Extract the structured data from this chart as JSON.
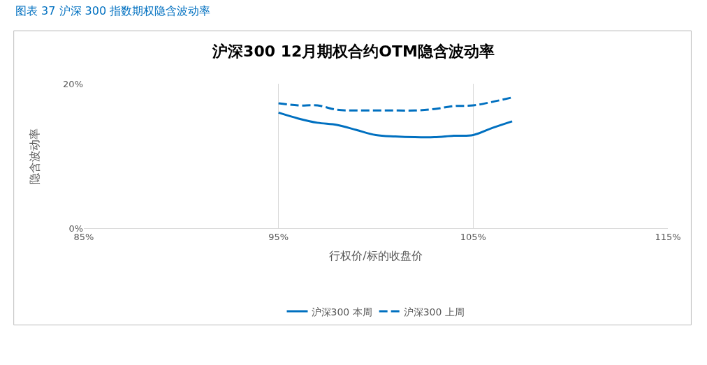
{
  "chart_data": {
    "type": "line",
    "title": "沪深300 12月期权合约OTM隐含波动率",
    "xlabel": "行权价/标的收盘价",
    "ylabel": "隐含波动率",
    "annotations": [
      "图表 37 沪深 300 指数期权隐含波动率"
    ],
    "x": [
      95,
      96,
      97,
      98,
      99,
      100,
      101,
      102,
      103,
      104,
      105,
      106,
      107
    ],
    "series": [
      {
        "name": "沪深300 本周",
        "color": "#0070c0",
        "line_style": "solid",
        "values": [
          16.0,
          15.2,
          14.6,
          14.3,
          13.6,
          12.9,
          12.7,
          12.6,
          12.6,
          12.8,
          12.9,
          13.9,
          14.8
        ]
      },
      {
        "name": "沪深300 上周",
        "color": "#0070c0",
        "line_style": "dashed",
        "values": [
          17.3,
          17.0,
          17.0,
          16.4,
          16.3,
          16.3,
          16.3,
          16.3,
          16.5,
          16.9,
          17.0,
          17.5,
          18.1
        ]
      }
    ],
    "xlim": [
      85,
      115
    ],
    "xticks": [
      {
        "value": 85,
        "label": "85%"
      },
      {
        "value": 95,
        "label": "95%"
      },
      {
        "value": 105,
        "label": "105%"
      },
      {
        "value": 115,
        "label": "115%"
      }
    ],
    "ylim": [
      0,
      20
    ],
    "yticks": [
      {
        "value": 0,
        "label": "0%"
      },
      {
        "value": 20,
        "label": "20%"
      }
    ],
    "grid": true,
    "legend": "bottom",
    "marker": "none"
  }
}
